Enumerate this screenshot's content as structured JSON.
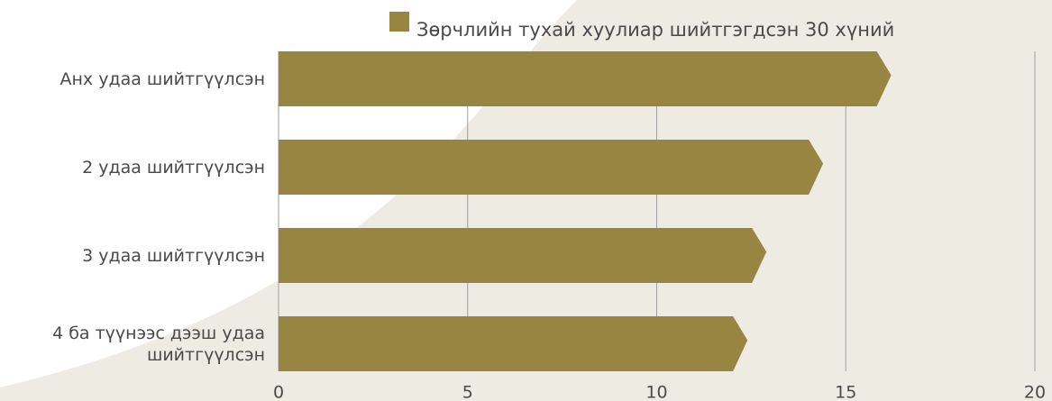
{
  "chart_data": {
    "type": "bar",
    "orientation": "horizontal",
    "categories": [
      "Анх удаа шийтгүүлсэн",
      "2 удаа шийтгүүлсэн",
      "3 удаа шийтгүүлсэн",
      "4 ба түүнээс дээш удаа шийтгүүлсэн"
    ],
    "series": [
      {
        "name": "Зөрчлийн тухай хуулиар шийтгэгдсэн 30 хүний",
        "color": "#978541",
        "values": [
          16.2,
          14.4,
          12.9,
          12.4
        ]
      }
    ],
    "xlim": [
      0,
      20
    ],
    "xticks": [
      0,
      5,
      10,
      15,
      20
    ],
    "grid": true,
    "legend": "top"
  }
}
